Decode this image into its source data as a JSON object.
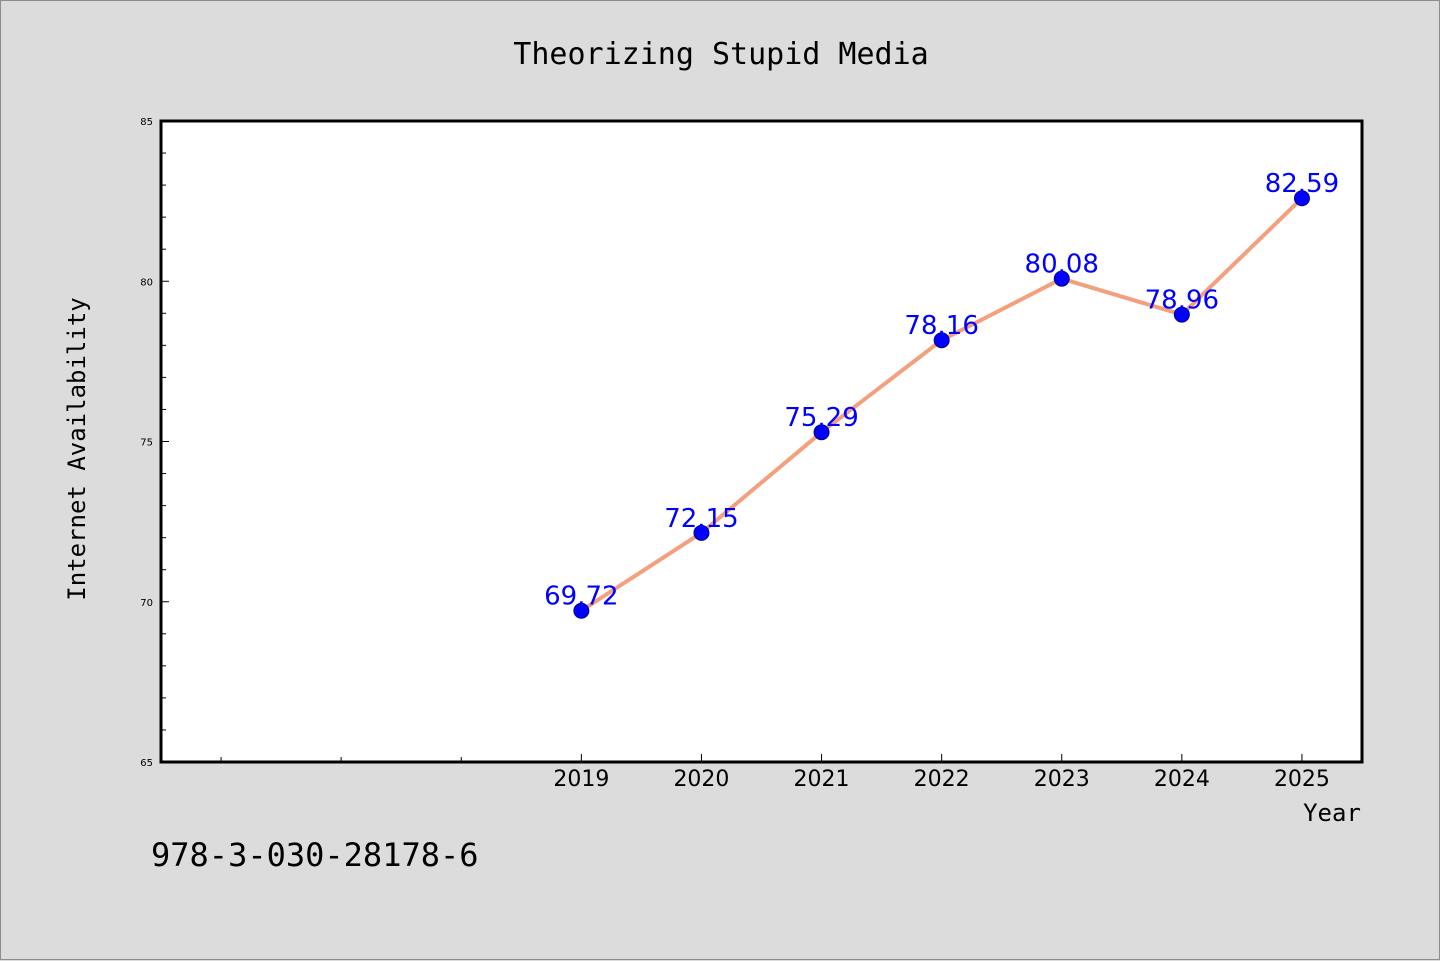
{
  "footer_text": "978-3-030-28178-6",
  "colors": {
    "background": "#dcdcdc",
    "plot_background": "#ffffff",
    "line": "#f4a07e",
    "marker": "#0000ff",
    "data_label": "#0000ff"
  },
  "chart_data": {
    "type": "line",
    "title": "Theorizing Stupid Media",
    "xlabel": "Year",
    "ylabel": "Internet Availability",
    "xlim": [
      2015.5,
      2025.5
    ],
    "ylim": [
      65,
      85
    ],
    "yticks": [
      65,
      70,
      75,
      80,
      85
    ],
    "x_minor_ticks": [
      2016,
      2017,
      2018
    ],
    "categories": [
      "2019",
      "2020",
      "2021",
      "2022",
      "2023",
      "2024",
      "2025"
    ],
    "x": [
      2019,
      2020,
      2021,
      2022,
      2023,
      2024,
      2025
    ],
    "series": [
      {
        "values": [
          69.72,
          72.15,
          75.29,
          78.16,
          80.08,
          78.96,
          82.59
        ],
        "labels": [
          "69.72",
          "72.15",
          "75.29",
          "78.16",
          "80.08",
          "78.96",
          "82.59"
        ]
      }
    ],
    "grid": false,
    "legend": "none"
  }
}
